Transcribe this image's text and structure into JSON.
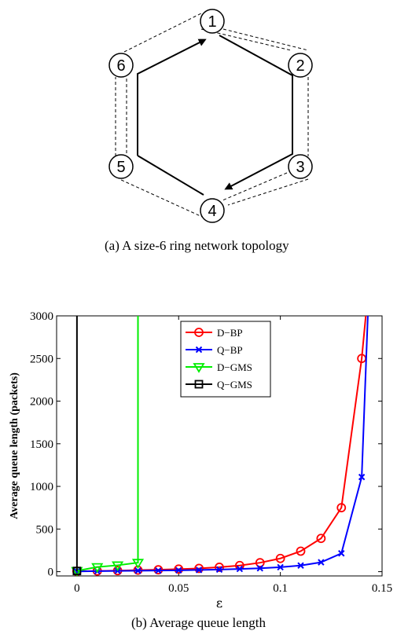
{
  "figure_a": {
    "caption": "(a) A size-6 ring network topology",
    "nodes": [
      "1",
      "2",
      "3",
      "4",
      "5",
      "6"
    ]
  },
  "figure_b": {
    "caption": "(b) Average queue length"
  },
  "chart_data": {
    "type": "line",
    "title": "",
    "xlabel": "ε",
    "ylabel": "Average queue length (packets)",
    "xlim": [
      -0.01,
      0.15
    ],
    "ylim": [
      -50,
      3000
    ],
    "xticks": [
      0,
      0.05,
      0.1,
      0.15
    ],
    "xtick_labels": [
      "0",
      "0.05",
      "0.1",
      "0.15"
    ],
    "yticks": [
      0,
      500,
      1000,
      1500,
      2000,
      2500,
      3000
    ],
    "ytick_labels": [
      "0",
      "500",
      "1000",
      "1500",
      "2000",
      "2500",
      "3000"
    ],
    "legend_position": "top-center",
    "series": [
      {
        "name": "D−BP",
        "color": "#ff0000",
        "marker": "circle",
        "x": [
          0,
          0.01,
          0.02,
          0.03,
          0.04,
          0.05,
          0.06,
          0.07,
          0.08,
          0.09,
          0.1,
          0.11,
          0.12,
          0.13,
          0.14,
          0.142
        ],
        "y": [
          5,
          8,
          12,
          18,
          22,
          30,
          38,
          52,
          72,
          105,
          155,
          240,
          390,
          750,
          2500,
          3000
        ],
        "marker_count": 15
      },
      {
        "name": "Q−BP",
        "color": "#0000ff",
        "marker": "x",
        "x": [
          0,
          0.01,
          0.02,
          0.03,
          0.04,
          0.05,
          0.06,
          0.07,
          0.08,
          0.09,
          0.1,
          0.11,
          0.12,
          0.13,
          0.14,
          0.143
        ],
        "y": [
          3,
          6,
          9,
          11,
          13,
          16,
          20,
          25,
          32,
          40,
          52,
          72,
          110,
          215,
          1110,
          3000
        ],
        "marker_count": 15
      },
      {
        "name": "D−GMS",
        "color": "#00ee00",
        "marker": "triangle-down",
        "x": [
          0,
          0.01,
          0.02,
          0.03,
          0.03
        ],
        "y": [
          10,
          55,
          75,
          105,
          3000
        ],
        "marker_count": 4
      },
      {
        "name": "Q−GMS",
        "color": "#000000",
        "marker": "square",
        "x": [
          0,
          0
        ],
        "y": [
          8,
          3000
        ],
        "marker_count": 1
      }
    ]
  }
}
